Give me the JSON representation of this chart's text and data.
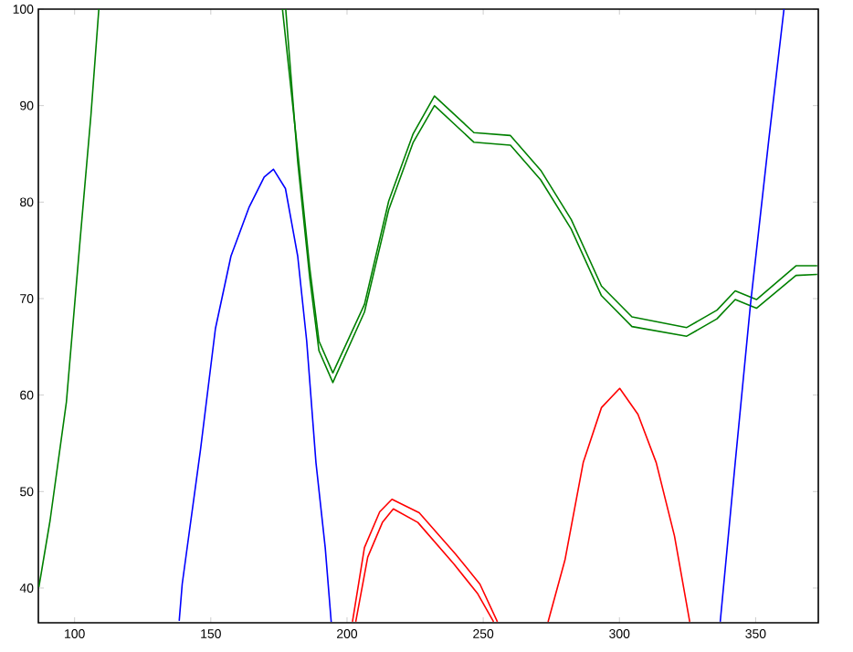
{
  "chart_data": {
    "type": "line",
    "xlim": [
      86.7,
      373
    ],
    "ylim": [
      36.4,
      100
    ],
    "xticks": [
      100,
      150,
      200,
      250,
      300,
      350
    ],
    "yticks": [
      40,
      50,
      60,
      70,
      80,
      90,
      100
    ],
    "grid": false,
    "marker": "none",
    "line_style": "solid",
    "series": [
      {
        "color": "#008000",
        "x": [
          86.9,
          91,
          97,
          102,
          106,
          108.9,
          140,
          176.3,
          181.9,
          186.3,
          189.7,
          194.8,
          206.4,
          215.3,
          224.3,
          232.1,
          246.6,
          260,
          271.1,
          282.3,
          293.4,
          304.6,
          324.7,
          335.8,
          342.5,
          350.3,
          364.8,
          372.6
        ],
        "values": [
          40.1,
          47,
          59.3,
          76,
          89,
          100,
          null,
          100,
          85.2,
          73.2,
          65.6,
          62.3,
          69.4,
          80.1,
          87.1,
          91.0,
          87.2,
          86.9,
          83.3,
          78.2,
          71.3,
          68.1,
          67.0,
          68.8,
          70.8,
          69.9,
          73.4,
          73.4
        ]
      },
      {
        "color": "#008000",
        "x": [
          177.5,
          181.9,
          186.3,
          189.7,
          194.8,
          206.4,
          215.3,
          224.3,
          232.1,
          246.6,
          260,
          271.1,
          282.3,
          293.4,
          304.6,
          324.7,
          335.8,
          342.5,
          350.3,
          364.8,
          372.6
        ],
        "values": [
          100,
          84.2,
          72.2,
          64.6,
          61.3,
          68.6,
          79.2,
          86.2,
          90.0,
          86.2,
          85.9,
          82.3,
          77.2,
          70.3,
          67.1,
          66.1,
          67.9,
          69.9,
          69.0,
          72.4,
          72.5
        ]
      },
      {
        "color": "#0000ff",
        "x": [
          138.4,
          139.5,
          146.2,
          151.7,
          157.4,
          164.1,
          169.6,
          173,
          177.4,
          181.9,
          185.2,
          188.6,
          192,
          194.2,
          260,
          337,
          342.5,
          348.1,
          354.8,
          360.4
        ],
        "values": [
          36.6,
          40.4,
          54.3,
          66.9,
          74.4,
          79.5,
          82.6,
          83.4,
          81.4,
          74.4,
          65.6,
          53.0,
          44.2,
          36.5,
          null,
          36.5,
          53.0,
          69.4,
          86.4,
          100
        ]
      },
      {
        "color": "#ff0000",
        "x": [
          202,
          206.4,
          212,
          216.5,
          226.5,
          239.9,
          248.8,
          255.2,
          265,
          273.8,
          280,
          286.7,
          293.4,
          300.1,
          306.8,
          313.5,
          320.2,
          325.8
        ],
        "values": [
          36.5,
          44.2,
          47.9,
          49.2,
          47.8,
          43.5,
          40.4,
          36.5,
          null,
          36.5,
          42.9,
          53.0,
          58.7,
          60.7,
          58.0,
          53.0,
          45.4,
          36.5
        ]
      },
      {
        "color": "#ff0000",
        "x": [
          203.2,
          207.6,
          213,
          217,
          226,
          239.2,
          248,
          253.8
        ],
        "values": [
          36.5,
          43.2,
          46.8,
          48.2,
          46.8,
          42.5,
          39.4,
          36.5
        ]
      }
    ]
  }
}
